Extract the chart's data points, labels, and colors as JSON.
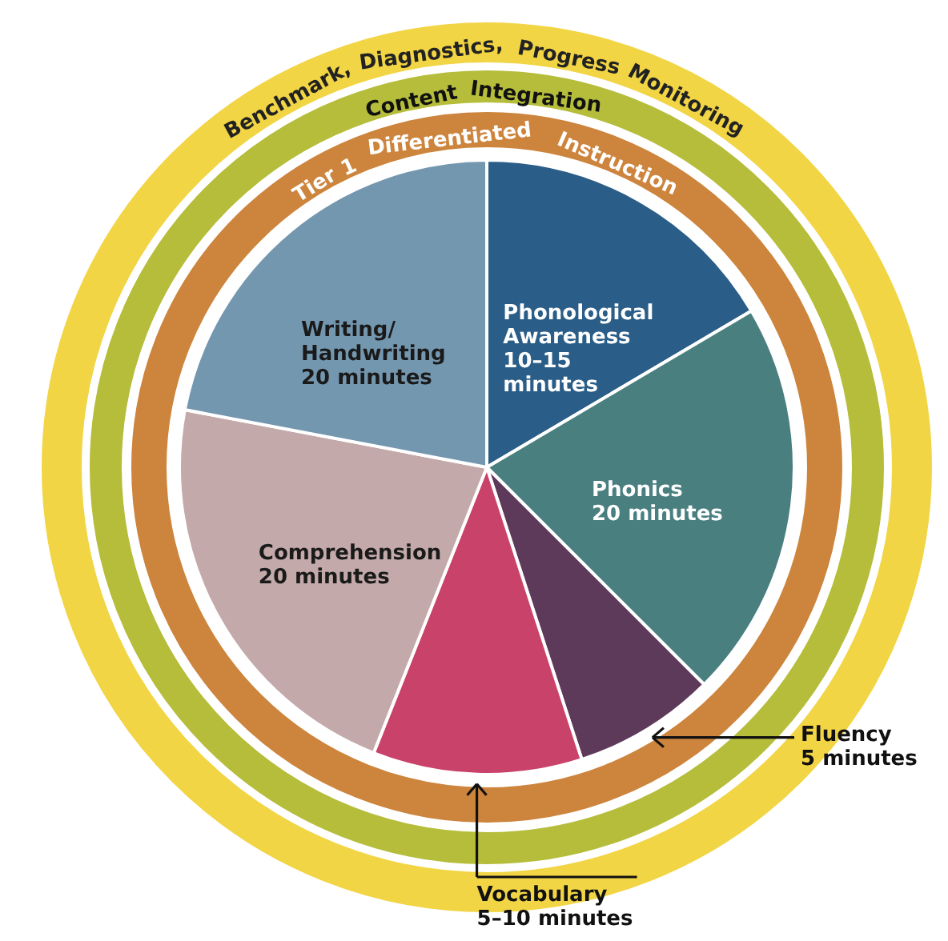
{
  "chart_data": {
    "type": "pie",
    "categories": [
      "Phonological\nAwareness\n10–15\nminutes",
      "Phonics\n20 minutes",
      "Fluency\n5 minutes",
      "Vocabulary\n5–10 minutes",
      "Comprehension\n20 minutes",
      "Writing/\nHandwriting\n20 minutes"
    ],
    "values": [
      16.5,
      21,
      7.5,
      11,
      22,
      22
    ],
    "colors": [
      "#2a5d87",
      "#4a7f80",
      "#5e3a5a",
      "#c9426a",
      "#c4a9aa",
      "#7497b0"
    ],
    "annotations": [
      "Benchmark, Diagnostics, Progress Monitoring",
      "Content Integration",
      "Tier 1 Differentiated Instruction"
    ]
  }
}
